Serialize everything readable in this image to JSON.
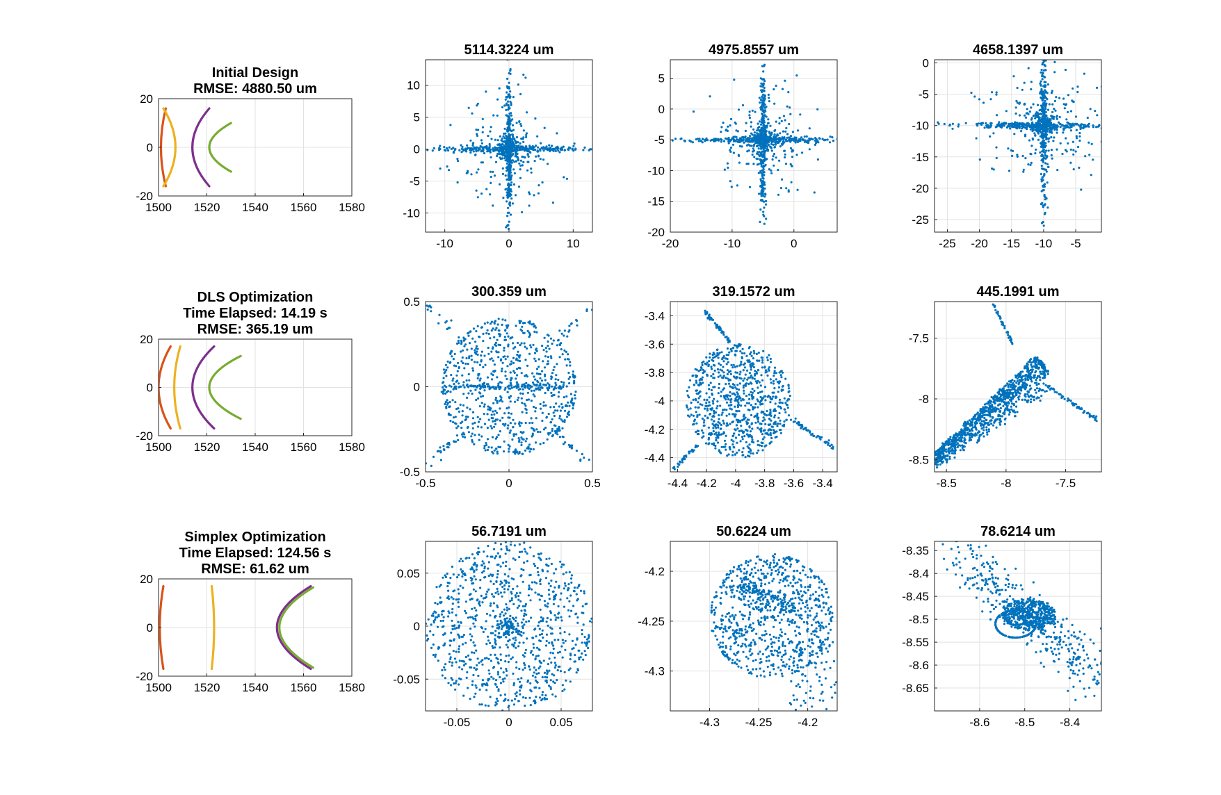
{
  "chart_data": [
    {
      "type": "line",
      "panel": "lens-layout",
      "row": 0,
      "title": [
        "Initial Design",
        "RMSE: 4880.50 um"
      ],
      "xlim": [
        1500,
        1580
      ],
      "ylim": [
        -20,
        20
      ],
      "xticks": [
        1500,
        1520,
        1540,
        1560,
        1580
      ],
      "yticks": [
        -20,
        0,
        20
      ],
      "grid": true,
      "series": [
        {
          "color": "#D95319",
          "x": [
            1503,
            1501,
            1503
          ],
          "y": [
            -16,
            0,
            16
          ]
        },
        {
          "color": "#EDB120",
          "x": [
            1502,
            1507,
            1502
          ],
          "y": [
            -16,
            0,
            16
          ]
        },
        {
          "color": "#7E2F8E",
          "x": [
            1521,
            1514,
            1521
          ],
          "y": [
            -16,
            0,
            16
          ]
        },
        {
          "color": "#77AC30",
          "x": [
            1530,
            1521,
            1530
          ],
          "y": [
            -10,
            0,
            10
          ]
        }
      ]
    },
    {
      "type": "scatter",
      "panel": "spot",
      "row": 0,
      "col": 0,
      "title": "5114.3224 um",
      "xlim": [
        -13,
        13
      ],
      "ylim": [
        -13,
        14
      ],
      "xticks": [
        -10,
        0,
        10
      ],
      "yticks": [
        -10,
        -5,
        0,
        5,
        10
      ],
      "grid": true,
      "color": "#0072BD",
      "pattern": {
        "kind": "cross",
        "cx": 0,
        "cy": 0,
        "rx": 13,
        "ry": 13.5,
        "n": 900
      }
    },
    {
      "type": "scatter",
      "panel": "spot",
      "row": 0,
      "col": 1,
      "title": "4975.8557 um",
      "xlim": [
        -20,
        7
      ],
      "ylim": [
        -20,
        8
      ],
      "xticks": [
        -20,
        -10,
        0
      ],
      "yticks": [
        -20,
        -15,
        -10,
        -5,
        0,
        5
      ],
      "grid": true,
      "color": "#0072BD",
      "pattern": {
        "kind": "cross",
        "cx": -5,
        "cy": -5,
        "rx": 14,
        "ry": 14,
        "n": 900
      }
    },
    {
      "type": "scatter",
      "panel": "spot",
      "row": 0,
      "col": 2,
      "title": "4658.1397 um",
      "xlim": [
        -27,
        -1
      ],
      "ylim": [
        -27,
        0.5
      ],
      "xticks": [
        -25,
        -20,
        -15,
        -10,
        -5
      ],
      "yticks": [
        -25,
        -20,
        -15,
        -10,
        -5,
        0
      ],
      "grid": true,
      "color": "#0072BD",
      "pattern": {
        "kind": "cross",
        "cx": -10,
        "cy": -10,
        "rx": 15,
        "ry": 15,
        "n": 900
      }
    },
    {
      "type": "line",
      "panel": "lens-layout",
      "row": 1,
      "title": [
        "DLS Optimization",
        "Time Elapsed: 14.19 s",
        "RMSE: 365.19 um"
      ],
      "xlim": [
        1500,
        1580
      ],
      "ylim": [
        -20,
        20
      ],
      "xticks": [
        1500,
        1520,
        1540,
        1560,
        1580
      ],
      "yticks": [
        -20,
        0,
        20
      ],
      "grid": true,
      "series": [
        {
          "color": "#D95319",
          "x": [
            1505,
            1500,
            1505
          ],
          "y": [
            -17,
            0,
            17
          ]
        },
        {
          "color": "#EDB120",
          "x": [
            1509,
            1506.5,
            1509
          ],
          "y": [
            -17,
            0,
            17
          ]
        },
        {
          "color": "#7E2F8E",
          "x": [
            1523,
            1514,
            1523
          ],
          "y": [
            -17,
            0,
            17
          ]
        },
        {
          "color": "#77AC30",
          "x": [
            1534,
            1521,
            1534
          ],
          "y": [
            -13,
            0,
            13
          ]
        }
      ]
    },
    {
      "type": "scatter",
      "panel": "spot",
      "row": 1,
      "col": 0,
      "title": "300.359 um",
      "xlim": [
        -0.5,
        0.5
      ],
      "ylim": [
        -0.5,
        0.5
      ],
      "xticks": [
        -0.5,
        0,
        0.5
      ],
      "yticks": [
        -0.5,
        0,
        0.5
      ],
      "grid": true,
      "color": "#0072BD",
      "pattern": {
        "kind": "disk-rays",
        "cx": 0,
        "cy": 0,
        "r": 0.4,
        "n": 950
      }
    },
    {
      "type": "scatter",
      "panel": "spot",
      "row": 1,
      "col": 1,
      "title": "319.1572 um",
      "xlim": [
        -4.45,
        -3.3
      ],
      "ylim": [
        -4.5,
        -3.3
      ],
      "xticks": [
        -4.4,
        -4.2,
        -4,
        -3.8,
        -3.6,
        -3.4
      ],
      "yticks": [
        -4.4,
        -4.2,
        -4,
        -3.8,
        -3.6,
        -3.4
      ],
      "grid": true,
      "color": "#0072BD",
      "pattern": {
        "kind": "blob",
        "cx": -3.98,
        "cy": -4.0,
        "r": 0.42,
        "n": 950
      }
    },
    {
      "type": "scatter",
      "panel": "spot",
      "row": 1,
      "col": 2,
      "title": "445.1991 um",
      "xlim": [
        -8.6,
        -7.2
      ],
      "ylim": [
        -8.6,
        -7.2
      ],
      "xticks": [
        -8.5,
        -8,
        -7.5
      ],
      "yticks": [
        -8.5,
        -8,
        -7.5
      ],
      "grid": true,
      "color": "#0072BD",
      "pattern": {
        "kind": "wedge",
        "cx": -8.1,
        "cy": -8.1,
        "n": 1100
      }
    },
    {
      "type": "line",
      "panel": "lens-layout",
      "row": 2,
      "title": [
        "Simplex Optimization",
        "Time Elapsed: 124.56 s",
        "RMSE: 61.62 um"
      ],
      "xlim": [
        1500,
        1580
      ],
      "ylim": [
        -20,
        20
      ],
      "xticks": [
        1500,
        1520,
        1540,
        1560,
        1580
      ],
      "yticks": [
        -20,
        0,
        20
      ],
      "grid": true,
      "series": [
        {
          "color": "#D95319",
          "x": [
            1502,
            1500.5,
            1502
          ],
          "y": [
            -17,
            0,
            17
          ]
        },
        {
          "color": "#EDB120",
          "x": [
            1522,
            1523,
            1522
          ],
          "y": [
            -17,
            0,
            17
          ]
        },
        {
          "color": "#7E2F8E",
          "x": [
            1563,
            1549,
            1563
          ],
          "y": [
            -17,
            0,
            17
          ]
        },
        {
          "color": "#77AC30",
          "x": [
            1564,
            1550,
            1564
          ],
          "y": [
            -16.5,
            0,
            16.5
          ]
        }
      ]
    },
    {
      "type": "scatter",
      "panel": "spot",
      "row": 2,
      "col": 0,
      "title": "56.7191 um",
      "xlim": [
        -0.08,
        0.08
      ],
      "ylim": [
        -0.08,
        0.08
      ],
      "xticks": [
        -0.05,
        0,
        0.05
      ],
      "yticks": [
        -0.05,
        0,
        0.05
      ],
      "grid": true,
      "color": "#0072BD",
      "pattern": {
        "kind": "disk",
        "cx": 0,
        "cy": 0,
        "r": 0.08,
        "n": 1000
      }
    },
    {
      "type": "scatter",
      "panel": "spot",
      "row": 2,
      "col": 1,
      "title": "50.6224 um",
      "xlim": [
        -4.34,
        -4.17
      ],
      "ylim": [
        -4.34,
        -4.17
      ],
      "xticks": [
        -4.3,
        -4.25,
        -4.2
      ],
      "yticks": [
        -4.3,
        -4.25,
        -4.2
      ],
      "grid": true,
      "color": "#0072BD",
      "pattern": {
        "kind": "disk-offset",
        "cx": -4.237,
        "cy": -4.245,
        "r": 0.062,
        "n": 1000
      }
    },
    {
      "type": "scatter",
      "panel": "spot",
      "row": 2,
      "col": 2,
      "title": "78.6214 um",
      "xlim": [
        -8.7,
        -8.33
      ],
      "ylim": [
        -8.7,
        -8.33
      ],
      "xticks": [
        -8.6,
        -8.5,
        -8.4
      ],
      "yticks": [
        -8.65,
        -8.6,
        -8.55,
        -8.5,
        -8.45,
        -8.4,
        -8.35
      ],
      "grid": true,
      "color": "#0072BD",
      "pattern": {
        "kind": "streak",
        "cx": -8.5,
        "cy": -8.49,
        "n": 1000
      }
    }
  ]
}
